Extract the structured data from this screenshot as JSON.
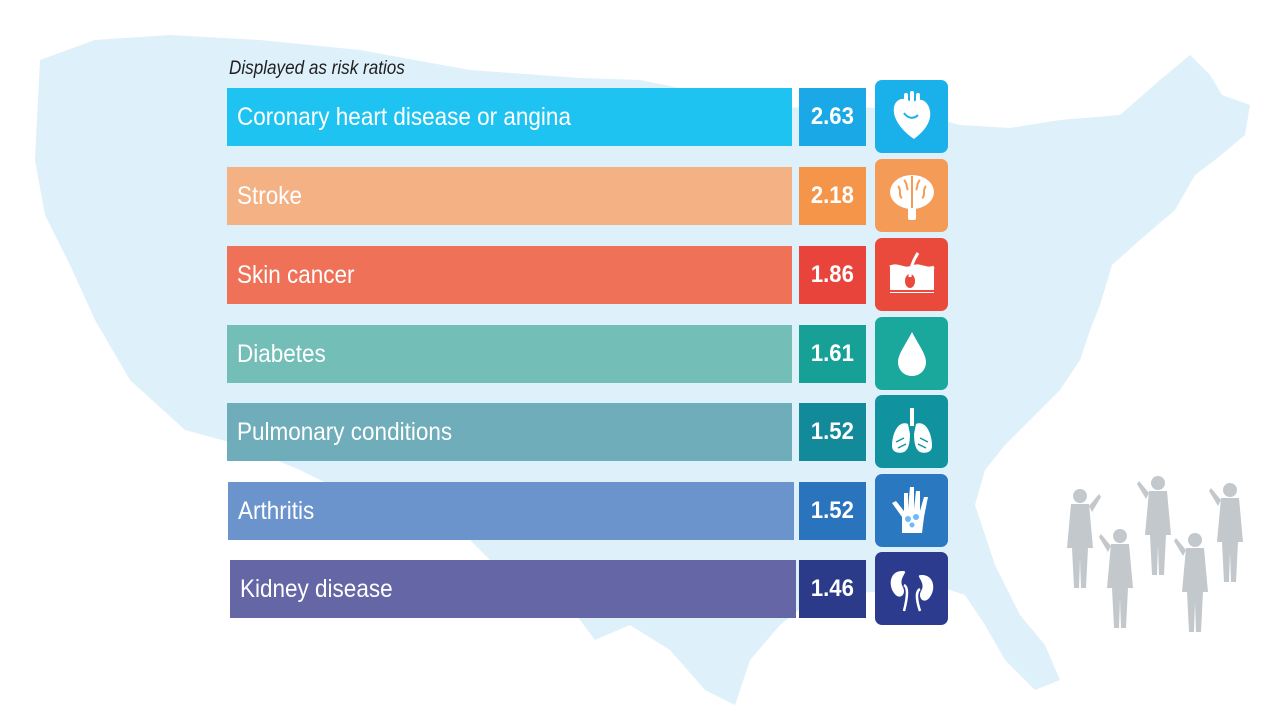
{
  "subtitle": "Displayed as risk ratios",
  "chart_data": {
    "type": "bar",
    "orientation": "horizontal",
    "title": "",
    "subtitle": "Displayed as risk ratios",
    "categories": [
      "Coronary heart disease or angina",
      "Stroke",
      "Skin cancer",
      "Diabetes",
      "Pulmonary conditions",
      "Arthritis",
      "Kidney disease"
    ],
    "values": [
      2.63,
      2.18,
      1.86,
      1.61,
      1.52,
      1.52,
      1.46
    ],
    "value_labels": [
      "2.63",
      "2.18",
      "1.86",
      "1.61",
      "1.52",
      "1.52",
      "1.46"
    ],
    "colors": {
      "bars": [
        "#1fc3f1",
        "#f4b184",
        "#ef7157",
        "#73bfb8",
        "#6eadb9",
        "#6b93cc",
        "#6566a6"
      ],
      "value_boxes": [
        "#1aa9e6",
        "#f5954a",
        "#e9443c",
        "#16a096",
        "#138a9a",
        "#2a73bd",
        "#2c3a8a"
      ],
      "icon_boxes": [
        "#1ab0ea",
        "#f39b57",
        "#ea4a3c",
        "#1aa89d",
        "#11939f",
        "#2a78c0",
        "#2d3b8f"
      ]
    },
    "icons": [
      "heart-icon",
      "brain-icon",
      "skin-icon",
      "drop-icon",
      "lungs-icon",
      "hand-icon",
      "kidney-icon"
    ],
    "background": [
      "us-map",
      "saluting-soldiers"
    ]
  }
}
